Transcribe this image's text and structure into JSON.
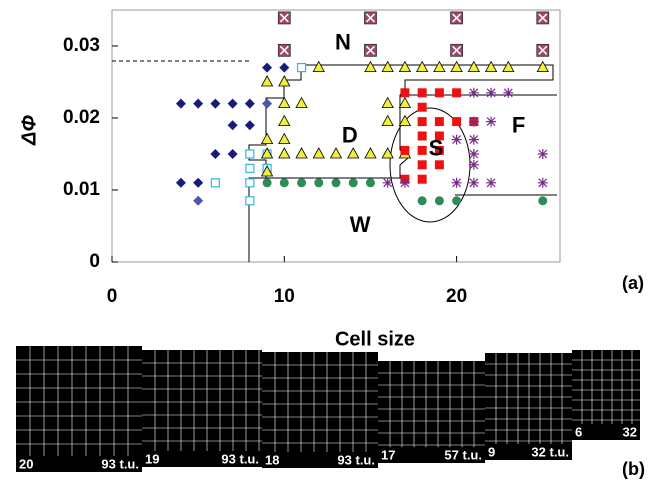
{
  "chart_data": {
    "type": "scatter",
    "xlabel": "Cell size",
    "ylabel": "ΔΦ",
    "panel_label": "(a)",
    "xlim": [
      0,
      26
    ],
    "ylim": [
      0,
      0.035
    ],
    "xticks": [
      0,
      10,
      20
    ],
    "yticks": [
      0,
      0.01,
      0.02,
      0.03
    ],
    "series": [
      {
        "marker": "diamond",
        "color": "#1a1a7a",
        "x": [
          4,
          5,
          6,
          7,
          8,
          9,
          10,
          7,
          8,
          6,
          7,
          4,
          5
        ],
        "y": [
          0.022,
          0.022,
          0.022,
          0.022,
          0.022,
          0.027,
          0.027,
          0.019,
          0.019,
          0.015,
          0.015,
          0.011,
          0.011
        ]
      },
      {
        "marker": "diamond",
        "color": "#4a5aa8",
        "x": [
          9,
          5
        ],
        "y": [
          0.022,
          0.0085
        ]
      },
      {
        "marker": "square-open",
        "color": "#33b5e5",
        "x": [
          11,
          8,
          9,
          8,
          9,
          6,
          8,
          8
        ],
        "y": [
          0.027,
          0.015,
          0.015,
          0.013,
          0.013,
          0.011,
          0.011,
          0.0085
        ]
      },
      {
        "marker": "triangle",
        "color": "#f2ee3a",
        "x": [
          12,
          15,
          16,
          17,
          18,
          19,
          20,
          21,
          22,
          23,
          25,
          9,
          10,
          10,
          11,
          16,
          17,
          10,
          16,
          17,
          9,
          10,
          9,
          10,
          11,
          12,
          13,
          14,
          15,
          16,
          17,
          9
        ],
        "y": [
          0.027,
          0.027,
          0.027,
          0.027,
          0.027,
          0.027,
          0.027,
          0.027,
          0.027,
          0.027,
          0.027,
          0.025,
          0.025,
          0.022,
          0.022,
          0.022,
          0.022,
          0.0195,
          0.0195,
          0.0195,
          0.017,
          0.017,
          0.015,
          0.015,
          0.015,
          0.015,
          0.015,
          0.015,
          0.015,
          0.015,
          0.015,
          0.0125
        ]
      },
      {
        "marker": "circle",
        "color": "#2e8b57",
        "x": [
          9,
          10,
          11,
          12,
          13,
          14,
          15,
          18,
          19,
          20,
          25
        ],
        "y": [
          0.011,
          0.011,
          0.011,
          0.011,
          0.011,
          0.011,
          0.011,
          0.0085,
          0.0085,
          0.0085,
          0.0085
        ]
      },
      {
        "marker": "square",
        "color": "#ee1111",
        "x": [
          17,
          18,
          19,
          20,
          18,
          18,
          19,
          20,
          21,
          18,
          19,
          17,
          18,
          19,
          18,
          19,
          18,
          17
        ],
        "y": [
          0.0235,
          0.0235,
          0.0235,
          0.0235,
          0.0215,
          0.0195,
          0.0195,
          0.0195,
          0.0195,
          0.0175,
          0.0175,
          0.0155,
          0.0155,
          0.0155,
          0.0135,
          0.0135,
          0.0115,
          0.0115
        ]
      },
      {
        "marker": "asterisk",
        "color": "#7a2a8a",
        "x": [
          21,
          22,
          23,
          21,
          22,
          20,
          21,
          21,
          25,
          16,
          17,
          20,
          21,
          22,
          25,
          21
        ],
        "y": [
          0.0235,
          0.0235,
          0.0235,
          0.0195,
          0.0195,
          0.017,
          0.017,
          0.015,
          0.015,
          0.011,
          0.011,
          0.011,
          0.011,
          0.011,
          0.011,
          0.0135
        ]
      },
      {
        "marker": "boxx",
        "color": "#a0466e",
        "x": [
          10,
          15,
          20,
          25,
          10,
          15,
          20,
          25
        ],
        "y": [
          0.0339,
          0.0339,
          0.0339,
          0.0339,
          0.0294,
          0.0294,
          0.0294,
          0.0294
        ]
      }
    ],
    "annotations": [
      {
        "text": "N",
        "x": 13.4,
        "y": 0.0303
      },
      {
        "text": "D",
        "x": 13.8,
        "y": 0.0174
      },
      {
        "text": "S",
        "x": 18.8,
        "y": 0.0156
      },
      {
        "text": "F",
        "x": 23.6,
        "y": 0.0188
      },
      {
        "text": "W",
        "x": 14.4,
        "y": 0.005
      }
    ]
  },
  "panels": {
    "label": "(b)",
    "items": [
      {
        "size": "20",
        "time": "93 t.u."
      },
      {
        "size": "19",
        "time": "93 t.u."
      },
      {
        "size": "18",
        "time": "93 t.u."
      },
      {
        "size": "17",
        "time": "57 t.u."
      },
      {
        "size": "9",
        "time": "32 t.u."
      },
      {
        "size": "6",
        "time": "32"
      }
    ]
  }
}
